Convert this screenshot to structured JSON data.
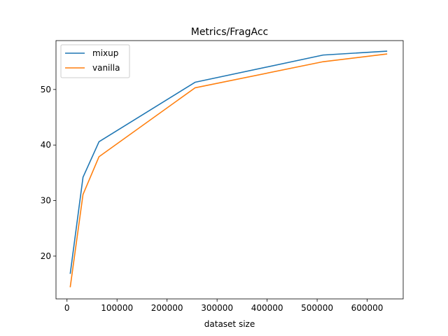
{
  "chart_data": {
    "type": "line",
    "title": "Metrics/FragAcc",
    "xlabel": "dataset size",
    "ylabel": "",
    "xlim": [
      -22000,
      672000
    ],
    "ylim": [
      12.3,
      58.8
    ],
    "xticks": [
      0,
      100000,
      200000,
      300000,
      400000,
      500000,
      600000
    ],
    "yticks": [
      20,
      30,
      40,
      50
    ],
    "grid": false,
    "legend": "top-left",
    "series": [
      {
        "name": "mixup",
        "color": "#1f77b4",
        "x": [
          6400,
          32000,
          64000,
          256000,
          512000,
          640000
        ],
        "y": [
          16.8,
          34.2,
          40.6,
          51.3,
          56.2,
          56.9
        ]
      },
      {
        "name": "vanilla",
        "color": "#ff7f0e",
        "x": [
          6400,
          32000,
          64000,
          256000,
          512000,
          640000
        ],
        "y": [
          14.4,
          31.1,
          37.9,
          50.3,
          55.0,
          56.4
        ]
      }
    ]
  }
}
